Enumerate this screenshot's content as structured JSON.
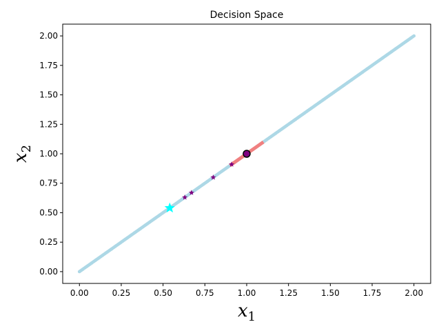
{
  "chart_data": {
    "type": "scatter",
    "title": "Decision Space",
    "xlabel": "x",
    "xlabel_sub": "1",
    "ylabel": "x",
    "ylabel_sub": "2",
    "xlim": [
      -0.1,
      2.1
    ],
    "ylim": [
      -0.1,
      2.1
    ],
    "xticks": [
      "0.00",
      "0.25",
      "0.50",
      "0.75",
      "1.00",
      "1.25",
      "1.50",
      "1.75",
      "2.00"
    ],
    "yticks": [
      "0.00",
      "0.25",
      "0.50",
      "0.75",
      "1.00",
      "1.25",
      "1.50",
      "1.75",
      "2.00"
    ],
    "grid": false,
    "series": [
      {
        "kind": "dense-points",
        "color": "#add8e6",
        "x_range": [
          0.0,
          2.0
        ],
        "slope": 1,
        "count": 300
      },
      {
        "kind": "highlight-segment",
        "color": "#f08080",
        "x": [
          0.9,
          1.1
        ],
        "y": [
          0.9,
          1.1
        ]
      },
      {
        "kind": "star-markers",
        "color": "#800080",
        "points": [
          [
            0.63,
            0.63
          ],
          [
            0.67,
            0.67
          ],
          [
            0.8,
            0.8
          ],
          [
            0.91,
            0.91
          ]
        ]
      },
      {
        "kind": "big-star",
        "color": "#00ffff",
        "points": [
          [
            0.54,
            0.54
          ]
        ]
      },
      {
        "kind": "circle",
        "color": "#800080",
        "edge_color": "#000000",
        "points": [
          [
            1.0,
            1.0
          ]
        ]
      }
    ]
  }
}
